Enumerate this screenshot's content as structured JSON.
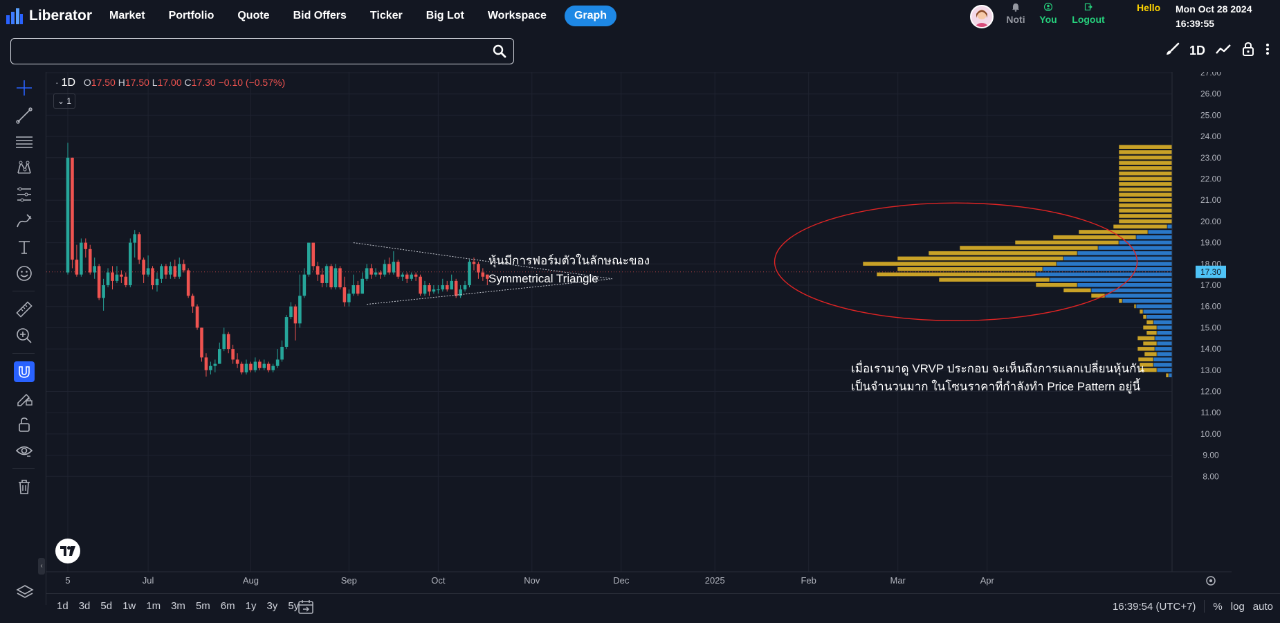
{
  "app": {
    "name": "Liberator"
  },
  "nav": [
    "Market",
    "Portfolio",
    "Quote",
    "Bid Offers",
    "Ticker",
    "Big Lot",
    "Workspace",
    "Graph"
  ],
  "nav_active": "Graph",
  "user": {
    "noti": "Noti",
    "you": "You",
    "logout": "Logout",
    "hello": "Hello"
  },
  "clock": {
    "date": "Mon Oct 28 2024",
    "time": "16:39:55"
  },
  "search": {
    "value": "",
    "placeholder": ""
  },
  "toolbar": {
    "timeframe": "1D"
  },
  "legend": {
    "dot": "·",
    "interval": "1D",
    "o_label": "O",
    "o": "17.50",
    "h_label": "H",
    "h": "17.50",
    "l_label": "L",
    "l": "17.00",
    "c_label": "C",
    "c": "17.30",
    "change": "−0.10 (−0.57%)",
    "indicator_count": "1"
  },
  "annotations": {
    "pattern": [
      "หุ้นมีการฟอร์มตัวในลักษณะของ",
      "Symmetrical Triangle"
    ],
    "vrvp": [
      "เมื่อเรามาดู VRVP ประกอบ จะเห็นถึงการแลกเปลี่ยนหุ้นกัน",
      "เป็นจำนวนมาก ในโซนราคาที่กำลังทำ Price Pattern อยู่นี้"
    ]
  },
  "bottom": {
    "periods": [
      "1d",
      "3d",
      "5d",
      "1w",
      "1m",
      "3m",
      "5m",
      "6m",
      "1y",
      "3y",
      "5y"
    ],
    "time": "16:39:54 (UTC+7)",
    "percent": "%",
    "log": "log",
    "auto": "auto"
  },
  "colors": {
    "up": "#26a69a",
    "down": "#ef5350",
    "vp_up": "#2a78c8",
    "vp_down": "#c9a227",
    "accent": "#2962ff",
    "ellipse": "#e02424"
  },
  "icons": [
    "crosshair-icon",
    "trend-line-icon",
    "fib-icon",
    "pattern-icon",
    "prediction-icon",
    "brush-icon",
    "text-icon",
    "emoji-icon",
    "ruler-icon",
    "zoom-icon",
    "magnet-icon",
    "lock-drawing-icon",
    "unlock-icon",
    "eye-icon",
    "trash-icon",
    "layers-icon",
    "search-icon",
    "bell-icon",
    "user-icon",
    "logout-icon",
    "settings-icon",
    "calendar-goto-icon"
  ],
  "chart_data": {
    "type": "candlestick",
    "symbol_interval": "1D",
    "last_price": "17.30",
    "y_ticks": [
      "27.00",
      "26.00",
      "25.00",
      "24.00",
      "23.00",
      "22.00",
      "21.00",
      "20.00",
      "19.00",
      "18.00",
      "17.00",
      "16.00",
      "15.00",
      "14.00",
      "13.00",
      "12.00",
      "11.00",
      "10.00",
      "9.00",
      "8.00"
    ],
    "ylim": [
      7.6,
      27.1
    ],
    "x_ticks": [
      {
        "label": "5",
        "index": 0
      },
      {
        "label": "Jul",
        "index": 18
      },
      {
        "label": "Aug",
        "index": 41
      },
      {
        "label": "Sep",
        "index": 63
      },
      {
        "label": "Oct",
        "index": 83
      },
      {
        "label": "Nov",
        "index": 104
      },
      {
        "label": "Dec",
        "index": 124
      },
      {
        "label": "2025",
        "index": 145
      },
      {
        "label": "Feb",
        "index": 166
      },
      {
        "label": "Mar",
        "index": 186
      },
      {
        "label": "Apr",
        "index": 206
      }
    ],
    "candles": [
      [
        17.6,
        23.0,
        23.7,
        17.5
      ],
      [
        23.0,
        18.2,
        23.0,
        17.8
      ],
      [
        18.2,
        17.5,
        18.9,
        17.4
      ],
      [
        17.5,
        19.0,
        19.2,
        17.4
      ],
      [
        19.0,
        18.7,
        19.2,
        18.3
      ],
      [
        18.7,
        17.6,
        18.9,
        17.5
      ],
      [
        17.6,
        17.9,
        18.3,
        17.3
      ],
      [
        17.9,
        16.4,
        18.0,
        16.3
      ],
      [
        16.4,
        17.0,
        17.3,
        15.8
      ],
      [
        17.0,
        17.6,
        17.8,
        16.9
      ],
      [
        17.6,
        17.2,
        17.9,
        16.8
      ],
      [
        17.2,
        17.5,
        17.9,
        17.1
      ],
      [
        17.5,
        17.4,
        17.7,
        17.1
      ],
      [
        17.4,
        17.0,
        17.6,
        16.9
      ],
      [
        17.0,
        19.0,
        19.2,
        16.9
      ],
      [
        19.0,
        19.4,
        19.6,
        18.3
      ],
      [
        19.4,
        18.2,
        19.5,
        18.0
      ],
      [
        18.2,
        17.5,
        18.3,
        17.1
      ],
      [
        17.5,
        17.8,
        18.4,
        17.4
      ],
      [
        17.8,
        17.0,
        17.9,
        16.8
      ],
      [
        17.0,
        17.3,
        17.6,
        16.7
      ],
      [
        17.3,
        17.9,
        18.0,
        17.1
      ],
      [
        17.9,
        17.5,
        18.0,
        17.3
      ],
      [
        17.5,
        17.9,
        18.1,
        17.3
      ],
      [
        17.9,
        17.4,
        18.2,
        17.3
      ],
      [
        17.4,
        18.0,
        18.3,
        17.3
      ],
      [
        18.0,
        17.7,
        18.2,
        17.6
      ],
      [
        17.7,
        16.5,
        17.8,
        16.4
      ],
      [
        16.5,
        16.0,
        16.6,
        15.7
      ],
      [
        16.0,
        15.0,
        16.1,
        14.9
      ],
      [
        15.0,
        13.6,
        15.0,
        13.4
      ],
      [
        13.6,
        13.0,
        13.8,
        12.7
      ],
      [
        13.0,
        13.2,
        13.4,
        12.8
      ],
      [
        13.2,
        13.3,
        13.5,
        12.9
      ],
      [
        13.3,
        14.0,
        14.3,
        13.3
      ],
      [
        14.0,
        14.7,
        15.0,
        13.9
      ],
      [
        14.7,
        14.0,
        14.8,
        13.8
      ],
      [
        14.0,
        13.5,
        14.2,
        13.3
      ],
      [
        13.5,
        13.3,
        13.8,
        13.1
      ],
      [
        13.3,
        12.9,
        13.4,
        12.8
      ],
      [
        12.9,
        13.3,
        13.5,
        12.8
      ],
      [
        13.3,
        13.0,
        13.4,
        12.9
      ],
      [
        13.0,
        13.4,
        13.6,
        12.9
      ],
      [
        13.4,
        13.1,
        13.5,
        13.0
      ],
      [
        13.1,
        13.3,
        13.5,
        13.0
      ],
      [
        13.3,
        13.0,
        13.4,
        12.9
      ],
      [
        13.0,
        13.2,
        13.3,
        12.9
      ],
      [
        13.2,
        13.5,
        14.0,
        13.1
      ],
      [
        13.5,
        14.1,
        14.4,
        13.4
      ],
      [
        14.1,
        15.5,
        15.6,
        14.0
      ],
      [
        15.5,
        16.0,
        16.2,
        15.4
      ],
      [
        16.0,
        15.2,
        16.1,
        14.4
      ],
      [
        15.2,
        16.5,
        17.5,
        15.0
      ],
      [
        16.5,
        17.5,
        17.8,
        16.4
      ],
      [
        17.5,
        19.0,
        19.0,
        17.4
      ],
      [
        19.0,
        17.9,
        19.0,
        17.7
      ],
      [
        17.9,
        17.5,
        18.1,
        17.2
      ],
      [
        17.5,
        17.1,
        17.8,
        16.9
      ],
      [
        17.1,
        17.9,
        18.0,
        16.9
      ],
      [
        17.9,
        16.9,
        18.0,
        16.8
      ],
      [
        16.9,
        17.8,
        18.0,
        16.8
      ],
      [
        17.8,
        16.9,
        17.9,
        16.8
      ],
      [
        16.9,
        16.2,
        17.4,
        16.0
      ],
      [
        16.2,
        16.6,
        16.8,
        16.0
      ],
      [
        16.6,
        17.0,
        17.5,
        16.5
      ],
      [
        17.0,
        16.6,
        17.2,
        16.5
      ],
      [
        16.6,
        17.3,
        17.6,
        16.6
      ],
      [
        17.3,
        17.8,
        18.0,
        17.2
      ],
      [
        17.8,
        17.5,
        18.0,
        17.3
      ],
      [
        17.5,
        17.6,
        17.8,
        17.4
      ],
      [
        17.6,
        17.5,
        17.7,
        17.3
      ],
      [
        17.5,
        18.0,
        18.2,
        17.4
      ],
      [
        18.0,
        17.6,
        18.3,
        17.5
      ],
      [
        17.6,
        18.1,
        18.6,
        17.5
      ],
      [
        18.1,
        17.4,
        18.2,
        17.3
      ],
      [
        17.4,
        17.5,
        17.6,
        17.2
      ],
      [
        17.5,
        17.3,
        17.6,
        17.1
      ],
      [
        17.3,
        17.5,
        17.6,
        17.2
      ],
      [
        17.5,
        17.4,
        17.6,
        17.2
      ],
      [
        17.4,
        16.6,
        17.5,
        16.5
      ],
      [
        16.6,
        17.0,
        17.2,
        16.5
      ],
      [
        17.0,
        16.7,
        17.1,
        16.5
      ],
      [
        16.7,
        16.8,
        17.0,
        16.6
      ],
      [
        16.8,
        16.8,
        17.0,
        16.6
      ],
      [
        16.8,
        17.0,
        17.3,
        16.7
      ],
      [
        17.0,
        16.8,
        17.2,
        16.7
      ],
      [
        16.8,
        17.2,
        17.5,
        16.8
      ],
      [
        17.2,
        16.5,
        17.3,
        16.4
      ],
      [
        16.5,
        16.8,
        17.0,
        16.4
      ],
      [
        16.8,
        17.0,
        17.2,
        16.7
      ],
      [
        17.0,
        18.1,
        18.2,
        16.9
      ],
      [
        18.1,
        18.0,
        18.3,
        17.7
      ],
      [
        18.0,
        17.6,
        18.1,
        17.3
      ],
      [
        17.6,
        17.4,
        17.8,
        17.2
      ],
      [
        17.5,
        17.3,
        17.5,
        17.0
      ]
    ],
    "triangle": {
      "upper": [
        [
          64,
          19.0
        ],
        [
          122,
          17.3
        ]
      ],
      "lower": [
        [
          67,
          16.1
        ],
        [
          122,
          17.3
        ]
      ]
    },
    "volume_profile": {
      "levels": [
        [
          23.5,
          0,
          80
        ],
        [
          23.25,
          0,
          80
        ],
        [
          23.0,
          0,
          80
        ],
        [
          22.75,
          0,
          80
        ],
        [
          22.5,
          0,
          80
        ],
        [
          22.25,
          0,
          80
        ],
        [
          22.0,
          0,
          80
        ],
        [
          21.75,
          0,
          80
        ],
        [
          21.5,
          0,
          80
        ],
        [
          21.25,
          0,
          80
        ],
        [
          21.0,
          0,
          80
        ],
        [
          20.75,
          0,
          80
        ],
        [
          20.5,
          0,
          80
        ],
        [
          20.25,
          0,
          80
        ],
        [
          20.0,
          0,
          80
        ],
        [
          19.75,
          10,
          78
        ],
        [
          19.5,
          38,
          100
        ],
        [
          19.25,
          55,
          120
        ],
        [
          19.0,
          80,
          150
        ],
        [
          18.75,
          110,
          200
        ],
        [
          18.5,
          140,
          215
        ],
        [
          18.25,
          160,
          240
        ],
        [
          18.0,
          170,
          280
        ],
        [
          17.75,
          190,
          210
        ],
        [
          17.5,
          200,
          230
        ],
        [
          17.25,
          180,
          160
        ],
        [
          17.0,
          140,
          60
        ],
        [
          16.75,
          120,
          40
        ],
        [
          16.5,
          100,
          20
        ],
        [
          16.25,
          75,
          5
        ],
        [
          16.0,
          55,
          3
        ],
        [
          15.75,
          45,
          5
        ],
        [
          15.5,
          40,
          5
        ],
        [
          15.25,
          30,
          10
        ],
        [
          15.0,
          25,
          20
        ],
        [
          14.75,
          25,
          15
        ],
        [
          14.5,
          28,
          25
        ],
        [
          14.25,
          25,
          20
        ],
        [
          14.0,
          28,
          25
        ],
        [
          13.75,
          25,
          18
        ],
        [
          13.5,
          30,
          22
        ],
        [
          13.25,
          30,
          20
        ],
        [
          13.0,
          25,
          25
        ],
        [
          12.75,
          8,
          4
        ]
      ]
    },
    "highlight_ellipse": true
  }
}
